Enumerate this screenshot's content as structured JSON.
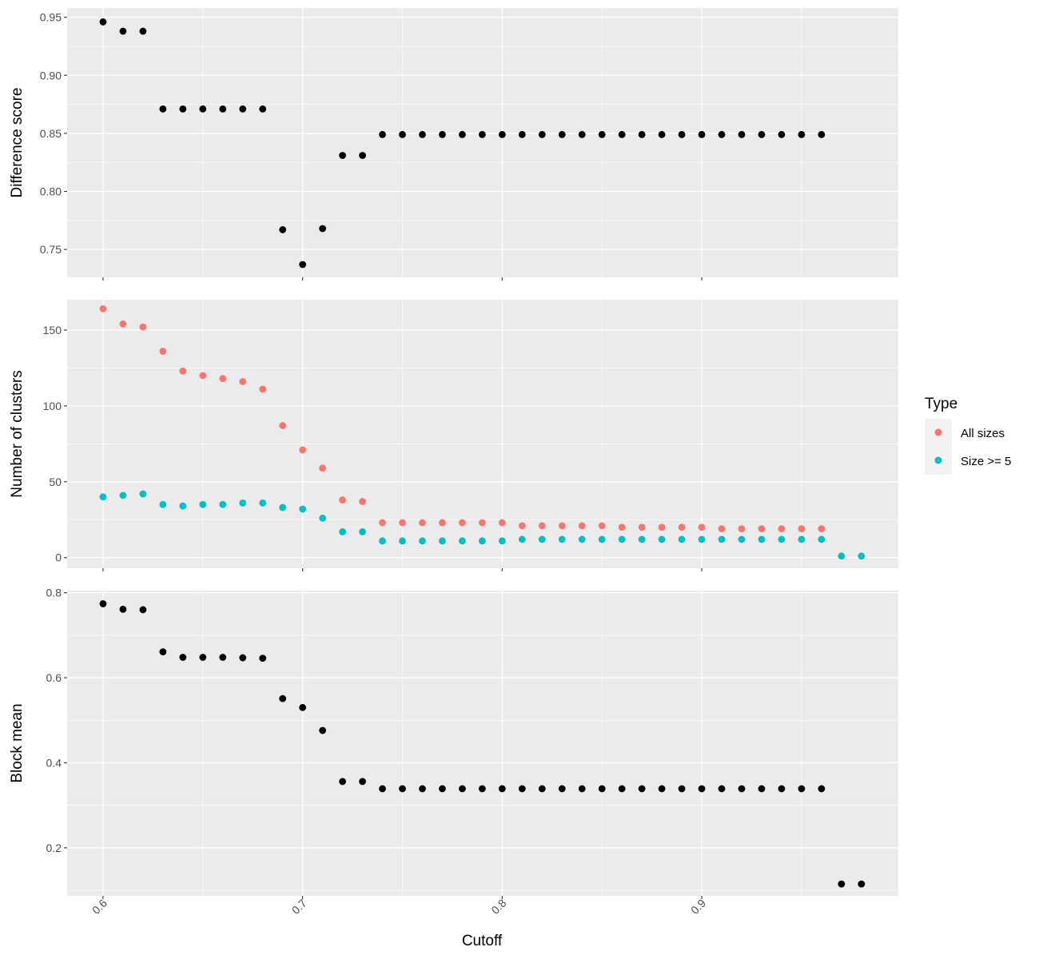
{
  "chart_data": {
    "type": "scatter",
    "xlabel": "Cutoff",
    "x_ticks": [
      0.6,
      0.7,
      0.8,
      0.9
    ],
    "x_tick_labels": [
      "0.6",
      "0.7",
      "0.8",
      "0.9"
    ],
    "xlim": [
      0.582,
      0.9985
    ],
    "background": "#EBEBEB",
    "grid": true,
    "legend": {
      "title": "Type",
      "position": "right",
      "entries": [
        {
          "label": "All sizes",
          "color": "#F8766D"
        },
        {
          "label": "Size >= 5",
          "color": "#00BFC4"
        }
      ]
    },
    "panels": [
      {
        "ylabel": "Difference score",
        "ylim": [
          0.726,
          0.958
        ],
        "y_ticks": [
          0.75,
          0.8,
          0.85,
          0.9,
          0.95
        ],
        "y_tick_labels": [
          "0.75",
          "0.80",
          "0.85",
          "0.90",
          "0.95"
        ],
        "series": [
          {
            "color": "#000000",
            "x": [
              0.6,
              0.61,
              0.62,
              0.63,
              0.64,
              0.65,
              0.66,
              0.67,
              0.68,
              0.69,
              0.7,
              0.71,
              0.72,
              0.73,
              0.74,
              0.75,
              0.76,
              0.77,
              0.78,
              0.79,
              0.8,
              0.81,
              0.82,
              0.83,
              0.84,
              0.85,
              0.86,
              0.87,
              0.88,
              0.89,
              0.9,
              0.91,
              0.92,
              0.93,
              0.94,
              0.95,
              0.96
            ],
            "y": [
              0.946,
              0.938,
              0.938,
              0.871,
              0.871,
              0.871,
              0.871,
              0.871,
              0.871,
              0.767,
              0.737,
              0.768,
              0.831,
              0.831,
              0.849,
              0.849,
              0.849,
              0.849,
              0.849,
              0.849,
              0.849,
              0.849,
              0.849,
              0.849,
              0.849,
              0.849,
              0.849,
              0.849,
              0.849,
              0.849,
              0.849,
              0.849,
              0.849,
              0.849,
              0.849,
              0.849,
              0.849
            ]
          }
        ]
      },
      {
        "ylabel": "Number of clusters",
        "ylim": [
          -7,
          170
        ],
        "y_ticks": [
          0,
          50,
          100,
          150
        ],
        "y_tick_labels": [
          "0",
          "50",
          "100",
          "150"
        ],
        "series": [
          {
            "name": "All sizes",
            "color": "#F8766D",
            "x": [
              0.6,
              0.61,
              0.62,
              0.63,
              0.64,
              0.65,
              0.66,
              0.67,
              0.68,
              0.69,
              0.7,
              0.71,
              0.72,
              0.73,
              0.74,
              0.75,
              0.76,
              0.77,
              0.78,
              0.79,
              0.8,
              0.81,
              0.82,
              0.83,
              0.84,
              0.85,
              0.86,
              0.87,
              0.88,
              0.89,
              0.9,
              0.91,
              0.92,
              0.93,
              0.94,
              0.95,
              0.96
            ],
            "y": [
              164,
              154,
              152,
              136,
              123,
              120,
              118,
              116,
              111,
              87,
              71,
              59,
              38,
              37,
              23,
              23,
              23,
              23,
              23,
              23,
              23,
              21,
              21,
              21,
              21,
              21,
              20,
              20,
              20,
              20,
              20,
              19,
              19,
              19,
              19,
              19,
              19
            ]
          },
          {
            "name": "Size >= 5",
            "color": "#00BFC4",
            "x": [
              0.6,
              0.61,
              0.62,
              0.63,
              0.64,
              0.65,
              0.66,
              0.67,
              0.68,
              0.69,
              0.7,
              0.71,
              0.72,
              0.73,
              0.74,
              0.75,
              0.76,
              0.77,
              0.78,
              0.79,
              0.8,
              0.81,
              0.82,
              0.83,
              0.84,
              0.85,
              0.86,
              0.87,
              0.88,
              0.89,
              0.9,
              0.91,
              0.92,
              0.93,
              0.94,
              0.95,
              0.96,
              0.97,
              0.98
            ],
            "y": [
              40,
              41,
              42,
              35,
              34,
              35,
              35,
              36,
              36,
              33,
              32,
              26,
              17,
              17,
              11,
              11,
              11,
              11,
              11,
              11,
              11,
              12,
              12,
              12,
              12,
              12,
              12,
              12,
              12,
              12,
              12,
              12,
              12,
              12,
              12,
              12,
              12,
              1,
              1
            ]
          }
        ]
      },
      {
        "ylabel": "Block mean",
        "ylim": [
          0.087,
          0.805
        ],
        "y_ticks": [
          0.2,
          0.4,
          0.6,
          0.8
        ],
        "y_tick_labels": [
          "0.2",
          "0.4",
          "0.6",
          "0.8"
        ],
        "series": [
          {
            "color": "#000000",
            "x": [
              0.6,
              0.61,
              0.62,
              0.63,
              0.64,
              0.65,
              0.66,
              0.67,
              0.68,
              0.69,
              0.7,
              0.71,
              0.72,
              0.73,
              0.74,
              0.75,
              0.76,
              0.77,
              0.78,
              0.79,
              0.8,
              0.81,
              0.82,
              0.83,
              0.84,
              0.85,
              0.86,
              0.87,
              0.88,
              0.89,
              0.9,
              0.91,
              0.92,
              0.93,
              0.94,
              0.95,
              0.96,
              0.97,
              0.98
            ],
            "y": [
              0.774,
              0.761,
              0.76,
              0.661,
              0.648,
              0.648,
              0.648,
              0.647,
              0.646,
              0.551,
              0.53,
              0.476,
              0.356,
              0.356,
              0.339,
              0.339,
              0.339,
              0.339,
              0.339,
              0.339,
              0.339,
              0.339,
              0.339,
              0.339,
              0.339,
              0.339,
              0.339,
              0.339,
              0.339,
              0.339,
              0.339,
              0.339,
              0.339,
              0.339,
              0.339,
              0.339,
              0.339,
              0.115,
              0.115
            ]
          }
        ]
      }
    ]
  }
}
